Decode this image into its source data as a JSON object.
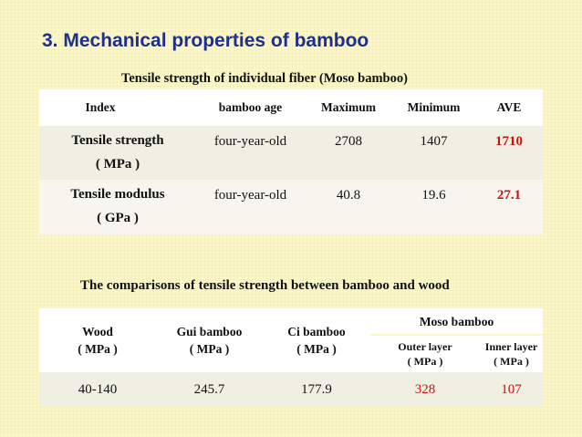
{
  "slide": {
    "title": "3. Mechanical properties of bamboo"
  },
  "table1": {
    "caption": "Tensile strength of individual fiber (Moso bamboo)",
    "headers": [
      "Index",
      "bamboo age",
      "Maximum",
      "Minimum",
      "AVE"
    ],
    "rows": [
      {
        "index": "Tensile strength",
        "unit": "( MPa )",
        "age": "four-year-old",
        "max": "2708",
        "min": "1407",
        "ave": "1710"
      },
      {
        "index": "Tensile modulus",
        "unit": "( GPa )",
        "age": "four-year-old",
        "max": "40.8",
        "min": "19.6",
        "ave": "27.1"
      }
    ]
  },
  "table2": {
    "caption": "The comparisons of tensile strength between bamboo and wood",
    "headers": {
      "wood": "Wood",
      "wood_unit": "( MPa )",
      "gui": "Gui bamboo",
      "gui_unit": "( MPa )",
      "ci": "Ci bamboo",
      "ci_unit": "( MPa )",
      "moso": "Moso bamboo",
      "outer": "Outer layer",
      "outer_unit": "( MPa )",
      "inner": "Inner layer",
      "inner_unit": "( MPa )"
    },
    "values": {
      "wood": "40-140",
      "gui": "245.7",
      "ci": "177.9",
      "outer": "328",
      "inner": "107"
    }
  },
  "colors": {
    "title": "#1f2f8a",
    "highlight": "#cc1111",
    "background": "#fbf7c9"
  }
}
